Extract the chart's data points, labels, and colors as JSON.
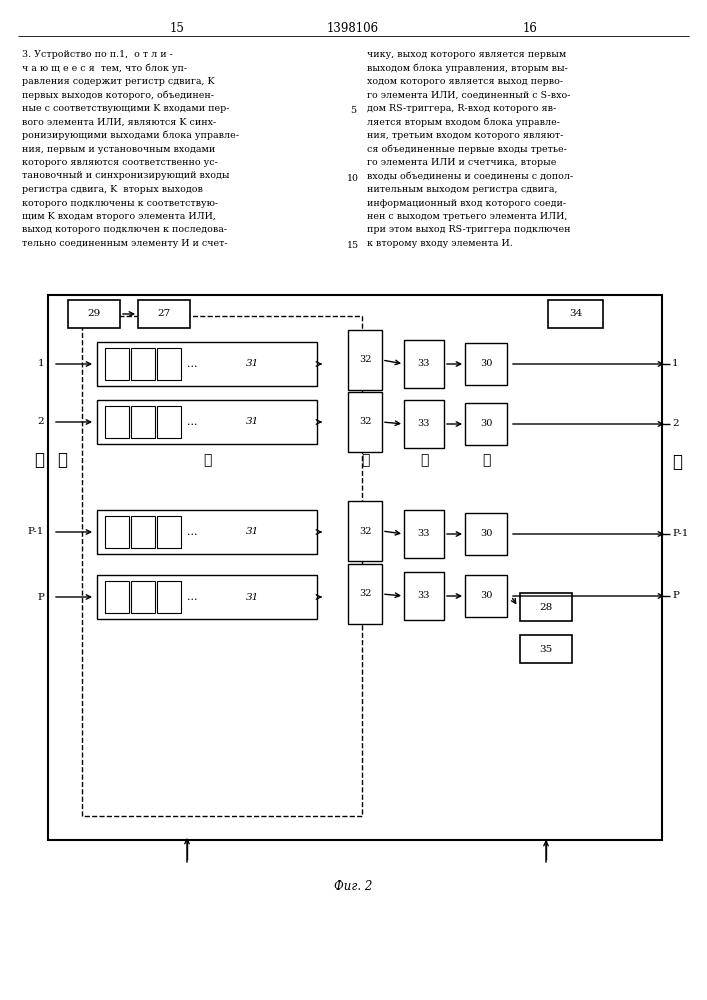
{
  "bg_color": "#ffffff",
  "page_num_left": "15",
  "page_num_center": "1398106",
  "page_num_right": "16",
  "left_col_lines": [
    "3. Устройство по п.1,  о т л и -",
    "ч а ю щ е е с я  тем, что блок уп-",
    "равления содержит регистр сдвига, K",
    "первых выходов которого, объединен-",
    "ные с соответствующими K входами пер-",
    "вого элемента ИЛИ, являются K синх-",
    "ронизирующими выходами блока управле-",
    "ния, первым и установочным входами",
    "которого являются соответственно ус-",
    "тановочный и синхронизирующий входы",
    "регистра сдвига, K  вторых выходов",
    "которого подключены к соответствую-",
    "щим K входам второго элемента ИЛИ,",
    "выход которого подключен к последова-",
    "тельно соединенным элементу И и счет-"
  ],
  "right_col_lines": [
    "чику, выход которого является первым",
    "выходом блока управления, вторым вы-",
    "ходом которого является выход перво-",
    "го элемента ИЛИ, соединенный с S-вхо-",
    "дом RS-триггера, R-вход которого яв-",
    "ляется вторым входом блока управле-",
    "ния, третьим входом которого являют-",
    "ся объединенные первые входы третье-",
    "го элемента ИЛИ и счетчика, вторые",
    "входы объединены и соединены с допол-",
    "нительным выходом регистра сдвига,",
    "информационный вход которого соеди-",
    "нен с выходом третьего элемента ИЛИ,",
    "при этом выход RS-триггера подключен",
    "к второму входу элемента И."
  ],
  "line_numbers": {
    "5": 4,
    "10": 9,
    "15": 14
  },
  "fig_caption": "Фиг. 2"
}
